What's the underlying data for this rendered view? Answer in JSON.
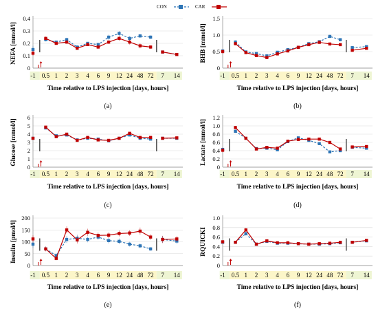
{
  "legend": {
    "items": [
      {
        "label": "CON",
        "color": "#2e75b6",
        "style": "dashed",
        "marker": "square"
      },
      {
        "label": "CAR",
        "color": "#c00000",
        "style": "solid",
        "marker": "square"
      }
    ]
  },
  "colors": {
    "con": "#2e75b6",
    "car": "#c00000",
    "day_band": "#eef5d3",
    "hour_band": "#fcf6c9",
    "grid": "#d9d9d9",
    "bracket": "#404040",
    "signif_marker": "#c00000"
  },
  "x_axis": {
    "ticks": [
      "-1",
      "0.5",
      "1",
      "2",
      "3",
      "4",
      "6",
      "9",
      "12",
      "24",
      "48",
      "72",
      "7",
      "14"
    ],
    "tick_units": [
      "days",
      "hours",
      "hours",
      "hours",
      "hours",
      "hours",
      "hours",
      "hours",
      "hours",
      "hours",
      "hours",
      "hours",
      "days",
      "days"
    ],
    "title_prefix": "Time relative to LPS injection [",
    "title_days": "days",
    "title_sep": ", ",
    "title_hours": "hours",
    "title_suffix": "]"
  },
  "chart_data": [
    {
      "type": "line",
      "panel_label": "(a)",
      "ylabel": "NEFA [mmol/l]",
      "ylim": [
        0,
        0.4
      ],
      "yticks": [
        "0",
        "0.1",
        "0.2",
        "0.3",
        "0.4"
      ],
      "grid": "horizontal",
      "categories": [
        "-1",
        "0.5",
        "1",
        "2",
        "3",
        "4",
        "6",
        "9",
        "12",
        "24",
        "48",
        "72",
        "7",
        "14"
      ],
      "series": [
        {
          "name": "CON",
          "values": [
            0.15,
            0.23,
            0.21,
            0.23,
            0.17,
            0.2,
            0.19,
            0.25,
            0.28,
            0.24,
            0.26,
            0.25,
            0.13,
            0.11
          ],
          "errors": [
            0.03,
            0.015,
            0.01,
            0.015,
            0.01,
            0.01,
            0.015,
            0.02,
            0.02,
            0.02,
            0.015,
            0.015,
            0.01,
            0.01
          ]
        },
        {
          "name": "CAR",
          "values": [
            0.12,
            0.24,
            0.2,
            0.21,
            0.16,
            0.19,
            0.17,
            0.21,
            0.24,
            0.21,
            0.18,
            0.17,
            0.13,
            0.11
          ],
          "errors": [
            0.02,
            0.015,
            0.01,
            0.015,
            0.01,
            0.01,
            0.015,
            0.015,
            0.02,
            0.02,
            0.02,
            0.015,
            0.01,
            0.01
          ]
        }
      ],
      "significance_arrow_at": "0.5"
    },
    {
      "type": "line",
      "panel_label": "(b)",
      "ylabel": "BHB [mmol/l]",
      "ylim": [
        0,
        1.5
      ],
      "yticks": [
        "0",
        "0.5",
        "1.0",
        "1.5"
      ],
      "grid": "horizontal",
      "categories": [
        "-1",
        "0.5",
        "1",
        "2",
        "3",
        "4",
        "6",
        "9",
        "12",
        "24",
        "48",
        "72",
        "7",
        "14"
      ],
      "series": [
        {
          "name": "CON",
          "values": [
            0.52,
            0.79,
            0.49,
            0.44,
            0.37,
            0.48,
            0.56,
            0.63,
            0.74,
            0.8,
            0.96,
            0.86,
            0.62,
            0.65
          ],
          "errors": [
            0.05,
            0.05,
            0.03,
            0.03,
            0.03,
            0.03,
            0.03,
            0.04,
            0.04,
            0.04,
            0.05,
            0.05,
            0.04,
            0.04
          ]
        },
        {
          "name": "CAR",
          "values": [
            0.5,
            0.74,
            0.47,
            0.38,
            0.32,
            0.43,
            0.52,
            0.63,
            0.71,
            0.78,
            0.73,
            0.71,
            0.54,
            0.6
          ],
          "errors": [
            0.05,
            0.05,
            0.03,
            0.03,
            0.03,
            0.03,
            0.03,
            0.04,
            0.04,
            0.04,
            0.04,
            0.04,
            0.04,
            0.04
          ]
        }
      ],
      "significance_arrow_at": "0.5"
    },
    {
      "type": "line",
      "panel_label": "(c)",
      "ylabel": "Glucose [mmol/l]",
      "ylim": [
        0,
        6
      ],
      "yticks": [
        "0",
        "1",
        "2",
        "3",
        "4",
        "5",
        "6"
      ],
      "grid": "horizontal",
      "categories": [
        "-1",
        "0.5",
        "1",
        "2",
        "3",
        "4",
        "6",
        "9",
        "12",
        "24",
        "48",
        "72",
        "7",
        "14"
      ],
      "series": [
        {
          "name": "CON",
          "values": [
            3.5,
            4.75,
            3.8,
            3.9,
            3.3,
            3.5,
            3.4,
            3.2,
            3.5,
            3.9,
            3.5,
            3.4,
            3.5,
            3.5
          ],
          "errors": [
            0.15,
            0.15,
            0.1,
            0.1,
            0.1,
            0.1,
            0.1,
            0.1,
            0.1,
            0.15,
            0.1,
            0.1,
            0.1,
            0.1
          ]
        },
        {
          "name": "CAR",
          "values": [
            3.5,
            4.85,
            3.7,
            4.0,
            3.25,
            3.6,
            3.3,
            3.25,
            3.5,
            4.1,
            3.6,
            3.6,
            3.5,
            3.55
          ],
          "errors": [
            0.15,
            0.15,
            0.1,
            0.1,
            0.1,
            0.1,
            0.1,
            0.1,
            0.1,
            0.15,
            0.1,
            0.1,
            0.1,
            0.1
          ]
        }
      ],
      "significance_arrow_at": "0.5"
    },
    {
      "type": "line",
      "panel_label": "(d)",
      "ylabel": "Lactate [mmol/l]",
      "ylim": [
        0,
        1.2
      ],
      "yticks": [
        "0",
        "0.2",
        "0.4",
        "0.6",
        "0.8",
        "1.0",
        "1.2"
      ],
      "grid": "horizontal",
      "categories": [
        "-1",
        "0.5",
        "1",
        "2",
        "3",
        "4",
        "6",
        "9",
        "12",
        "24",
        "48",
        "72",
        "7",
        "14"
      ],
      "series": [
        {
          "name": "CON",
          "values": [
            0.43,
            0.87,
            0.7,
            0.45,
            0.46,
            0.42,
            0.62,
            0.71,
            0.65,
            0.57,
            0.37,
            0.4,
            0.48,
            0.46
          ],
          "errors": [
            0.05,
            0.04,
            0.03,
            0.03,
            0.03,
            0.03,
            0.03,
            0.03,
            0.03,
            0.03,
            0.03,
            0.03,
            0.03,
            0.03
          ]
        },
        {
          "name": "CAR",
          "values": [
            0.41,
            0.96,
            0.7,
            0.44,
            0.48,
            0.46,
            0.63,
            0.67,
            0.68,
            0.68,
            0.6,
            0.44,
            0.49,
            0.5
          ],
          "errors": [
            0.05,
            0.04,
            0.03,
            0.03,
            0.03,
            0.03,
            0.03,
            0.03,
            0.03,
            0.03,
            0.03,
            0.03,
            0.03,
            0.03
          ]
        }
      ],
      "significance_arrow_at": "0.5"
    },
    {
      "type": "line",
      "panel_label": "(e)",
      "ylabel": "Insulin [pmol/l]",
      "ylim": [
        0,
        200
      ],
      "yticks": [
        "0",
        "50",
        "100",
        "150",
        "200"
      ],
      "grid": "horizontal",
      "categories": [
        "-1",
        "0.5",
        "1",
        "2",
        "3",
        "4",
        "6",
        "9",
        "12",
        "24",
        "48",
        "72",
        "7",
        "14"
      ],
      "series": [
        {
          "name": "CON",
          "values": [
            90,
            70,
            42,
            110,
            115,
            110,
            120,
            105,
            102,
            90,
            83,
            70,
            110,
            103
          ],
          "errors": [
            15,
            10,
            8,
            15,
            15,
            12,
            12,
            12,
            12,
            10,
            10,
            8,
            15,
            12
          ]
        },
        {
          "name": "CAR",
          "values": [
            112,
            70,
            30,
            150,
            108,
            140,
            127,
            128,
            135,
            137,
            145,
            120,
            110,
            112
          ],
          "errors": [
            15,
            10,
            8,
            15,
            15,
            15,
            12,
            12,
            12,
            12,
            15,
            12,
            15,
            12
          ]
        }
      ],
      "significance_arrow_at": "0.5"
    },
    {
      "type": "line",
      "panel_label": "(f)",
      "ylabel": "RQUICKI",
      "ylim": [
        0,
        1.0
      ],
      "yticks": [
        "0",
        "0.2",
        "0.4",
        "0.6",
        "0.8",
        "1.0"
      ],
      "grid": "horizontal",
      "categories": [
        "-1",
        "0.5",
        "1",
        "2",
        "3",
        "4",
        "6",
        "9",
        "12",
        "24",
        "48",
        "72",
        "7",
        "14"
      ],
      "series": [
        {
          "name": "CON",
          "values": [
            0.49,
            0.49,
            0.67,
            0.45,
            0.51,
            0.47,
            0.47,
            0.46,
            0.45,
            0.45,
            0.46,
            0.48,
            0.49,
            0.52
          ],
          "errors": [
            0.03,
            0.02,
            0.04,
            0.02,
            0.02,
            0.02,
            0.02,
            0.02,
            0.02,
            0.02,
            0.02,
            0.02,
            0.02,
            0.02
          ]
        },
        {
          "name": "CAR",
          "values": [
            0.5,
            0.49,
            0.75,
            0.45,
            0.52,
            0.48,
            0.48,
            0.46,
            0.45,
            0.46,
            0.47,
            0.49,
            0.49,
            0.53
          ],
          "errors": [
            0.03,
            0.02,
            0.04,
            0.02,
            0.02,
            0.02,
            0.02,
            0.02,
            0.02,
            0.02,
            0.02,
            0.02,
            0.02,
            0.02
          ]
        }
      ],
      "significance_arrow_at": "0.5"
    }
  ]
}
